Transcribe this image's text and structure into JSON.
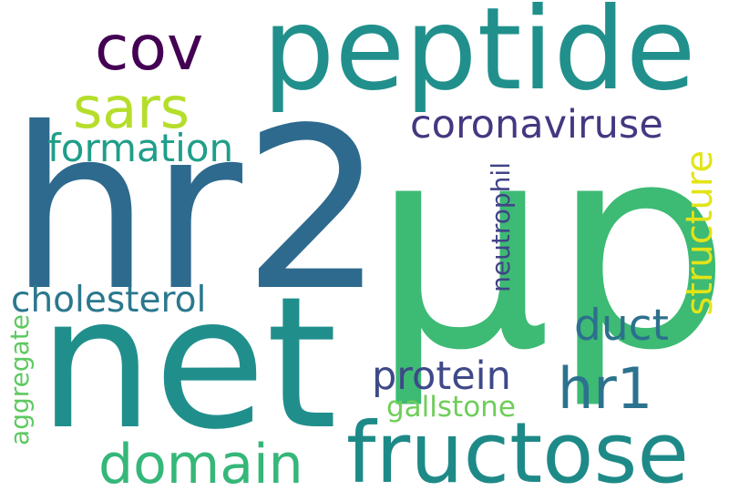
{
  "words": [
    {
      "id": "w-mup",
      "text": "μp",
      "color": "#3dba74"
    },
    {
      "id": "w-hr2",
      "text": "hr2",
      "color": "#2e6a8e"
    },
    {
      "id": "w-net",
      "text": "net",
      "color": "#208f8c"
    },
    {
      "id": "w-peptide",
      "text": "peptide",
      "color": "#21908c"
    },
    {
      "id": "w-fructose",
      "text": "fructose",
      "color": "#1e8a88"
    },
    {
      "id": "w-cov",
      "text": "cov",
      "color": "#440154"
    },
    {
      "id": "w-sars",
      "text": "sars",
      "color": "#b5de2b"
    },
    {
      "id": "w-coronaviruse",
      "text": "coronaviruse",
      "color": "#453781"
    },
    {
      "id": "w-formation",
      "text": "formation",
      "color": "#1f9e89"
    },
    {
      "id": "w-cholesterol",
      "text": "cholesterol",
      "color": "#2a788e"
    },
    {
      "id": "w-domain",
      "text": "domain",
      "color": "#35b779"
    },
    {
      "id": "w-protein",
      "text": "protein",
      "color": "#3e4989"
    },
    {
      "id": "w-hr1",
      "text": "hr1",
      "color": "#2c728e"
    },
    {
      "id": "w-duct",
      "text": "duct",
      "color": "#2d708e"
    },
    {
      "id": "w-gallstone",
      "text": "gallstone",
      "color": "#6ece58"
    },
    {
      "id": "w-structure",
      "text": "structure",
      "color": "#e2e418"
    },
    {
      "id": "w-neutrophil",
      "text": "neutrophil",
      "color": "#414487"
    },
    {
      "id": "w-aggregate",
      "text": "aggregate",
      "color": "#5ec962"
    }
  ]
}
